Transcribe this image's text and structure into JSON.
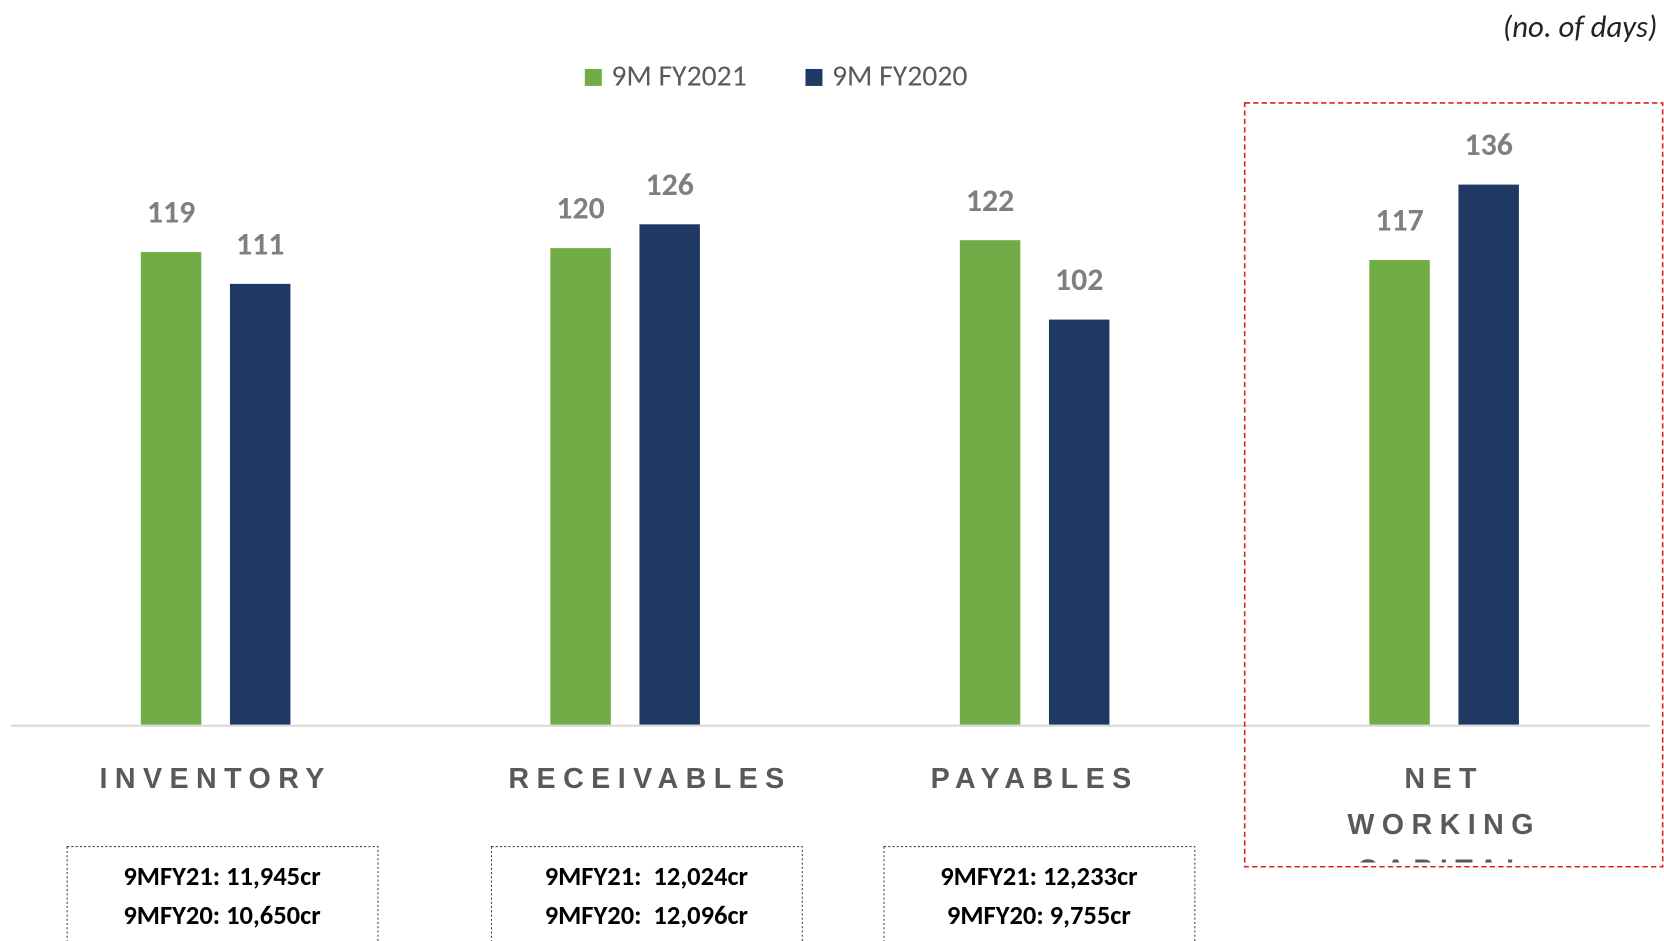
{
  "chart_data": {
    "type": "bar",
    "subtitle": "(no. of days)",
    "categories": [
      "INVENTORY",
      "RECEIVABLES",
      "PAYABLES",
      "NET WORKING CAPITAL"
    ],
    "series": [
      {
        "name": "9M FY2021",
        "color": "#70ad47",
        "values": [
          119,
          120,
          122,
          117
        ]
      },
      {
        "name": "9M FY2020",
        "color": "#203864",
        "values": [
          111,
          126,
          102,
          136
        ]
      }
    ],
    "legend": "top",
    "highlight_color": "#e02020",
    "notes": [
      [
        "9MFY21: 11,945cr",
        "9MFY20: 10,650cr"
      ],
      [
        "9MFY21:  12,024cr",
        "9MFY20:  12,096cr"
      ],
      [
        "9MFY21: 12,233cr",
        "9MFY20: 9,755cr"
      ]
    ]
  }
}
